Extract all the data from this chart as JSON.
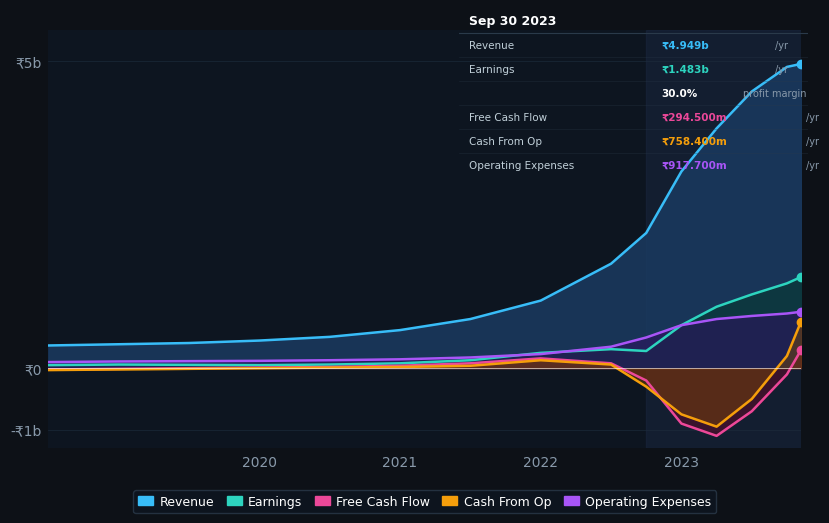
{
  "background_color": "#0d1117",
  "plot_bg_color": "#0d1520",
  "title": "Sep 30 2023",
  "grid_color": "#1e2d3d",
  "highlight_x": 2022.75,
  "yticks": [
    "-₹1b",
    "₹0",
    "₹5b"
  ],
  "ytick_vals": [
    -1000000000,
    0,
    5000000000
  ],
  "ylim": [
    -1300000000,
    5500000000
  ],
  "xlim": [
    2018.5,
    2023.85
  ],
  "xticks": [
    2020,
    2021,
    2022,
    2023
  ],
  "series": {
    "Revenue": {
      "color": "#38bdf8",
      "fill_color": "#1e3a5f",
      "x": [
        2018.5,
        2019.0,
        2019.5,
        2020.0,
        2020.5,
        2021.0,
        2021.5,
        2022.0,
        2022.5,
        2022.75,
        2023.0,
        2023.25,
        2023.5,
        2023.75,
        2023.85
      ],
      "y": [
        370000000,
        390000000,
        410000000,
        450000000,
        510000000,
        620000000,
        800000000,
        1100000000,
        1700000000,
        2200000000,
        3200000000,
        3900000000,
        4500000000,
        4900000000,
        4949000000
      ]
    },
    "Earnings": {
      "color": "#2dd4bf",
      "fill_color": "#0f4a4a",
      "x": [
        2018.5,
        2019.0,
        2019.5,
        2020.0,
        2020.5,
        2021.0,
        2021.5,
        2022.0,
        2022.5,
        2022.75,
        2023.0,
        2023.25,
        2023.5,
        2023.75,
        2023.85
      ],
      "y": [
        50000000,
        60000000,
        55000000,
        50000000,
        60000000,
        80000000,
        130000000,
        250000000,
        310000000,
        280000000,
        700000000,
        1000000000,
        1200000000,
        1380000000,
        1483000000
      ]
    },
    "FreeCashFlow": {
      "color": "#ec4899",
      "fill_color": "#7c1a3a",
      "x": [
        2018.5,
        2019.0,
        2019.5,
        2020.0,
        2020.5,
        2021.0,
        2021.5,
        2022.0,
        2022.5,
        2022.75,
        2023.0,
        2023.25,
        2023.5,
        2023.75,
        2023.85
      ],
      "y": [
        -20000000,
        -10000000,
        0,
        10000000,
        20000000,
        40000000,
        80000000,
        160000000,
        80000000,
        -200000000,
        -900000000,
        -1100000000,
        -700000000,
        -100000000,
        294500000
      ]
    },
    "CashFromOp": {
      "color": "#f59e0b",
      "fill_color": "#7c4a00",
      "x": [
        2018.5,
        2019.0,
        2019.5,
        2020.0,
        2020.5,
        2021.0,
        2021.5,
        2022.0,
        2022.5,
        2022.75,
        2023.0,
        2023.25,
        2023.5,
        2023.75,
        2023.85
      ],
      "y": [
        -30000000,
        -20000000,
        -10000000,
        0,
        10000000,
        20000000,
        40000000,
        130000000,
        60000000,
        -300000000,
        -750000000,
        -950000000,
        -500000000,
        200000000,
        758400000
      ]
    },
    "OperatingExpenses": {
      "color": "#a855f7",
      "fill_color": "#3b1a6e",
      "x": [
        2018.5,
        2019.0,
        2019.5,
        2020.0,
        2020.5,
        2021.0,
        2021.5,
        2022.0,
        2022.5,
        2022.75,
        2023.0,
        2023.25,
        2023.5,
        2023.75,
        2023.85
      ],
      "y": [
        100000000,
        110000000,
        115000000,
        120000000,
        130000000,
        145000000,
        175000000,
        230000000,
        350000000,
        500000000,
        700000000,
        800000000,
        850000000,
        890000000,
        917700000
      ]
    }
  },
  "tooltip": {
    "date": "Sep 30 2023",
    "revenue": "₹4.949b /yr",
    "earnings": "₹1.483b /yr",
    "profit_margin": "30.0% profit margin",
    "free_cash_flow": "₹294.500m /yr",
    "cash_from_op": "₹758.400m /yr",
    "operating_expenses": "₹917.700m /yr"
  },
  "legend": [
    {
      "label": "Revenue",
      "color": "#38bdf8"
    },
    {
      "label": "Earnings",
      "color": "#2dd4bf"
    },
    {
      "label": "Free Cash Flow",
      "color": "#ec4899"
    },
    {
      "label": "Cash From Op",
      "color": "#f59e0b"
    },
    {
      "label": "Operating Expenses",
      "color": "#a855f7"
    }
  ]
}
